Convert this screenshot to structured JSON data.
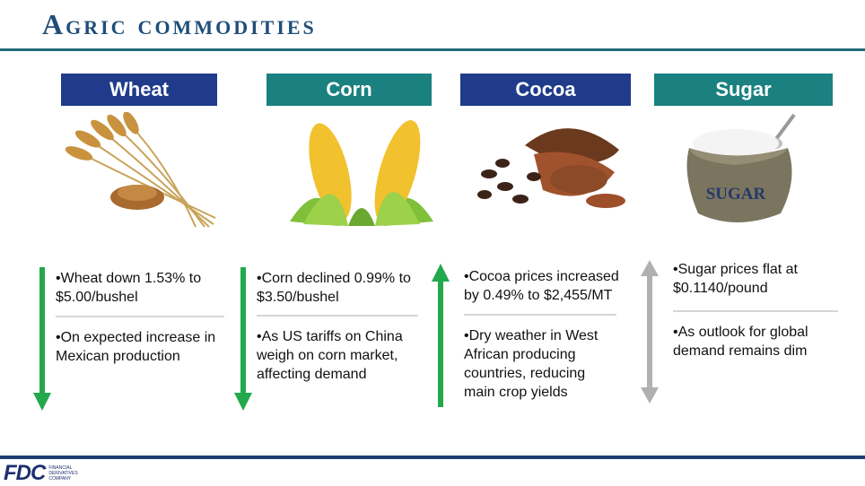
{
  "title": "Agric commodities",
  "colors": {
    "title": "#1f4e79",
    "navy_header": "#1f3b8a",
    "teal_header": "#1a8080",
    "down_arrow": "#23a94c",
    "up_arrow": "#23a94c",
    "flat_arrow": "#b0b0b0"
  },
  "commodities": [
    {
      "name": "Wheat",
      "icon": "wheat-icon",
      "trend": "down",
      "bullet_1_line_1": "•Wheat down 1.53% to",
      "bullet_1_line_2": "$5.00/bushel",
      "bullet_2_line_1": "•On expected increase in",
      "bullet_2_line_2": "Mexican production"
    },
    {
      "name": "Corn",
      "icon": "corn-icon",
      "trend": "down",
      "bullet_1_line_1": "•Corn declined 0.99%  to",
      "bullet_1_line_2": "$3.50/bushel",
      "bullet_2_line_1": "•As US tariffs on China",
      "bullet_2_line_2": "weigh on corn market,",
      "bullet_2_line_3": "affecting demand"
    },
    {
      "name": "Cocoa",
      "icon": "cocoa-icon",
      "trend": "up",
      "bullet_1_line_1": "•Cocoa prices increased",
      "bullet_1_line_2": "by 0.49% to $2,455/MT",
      "bullet_2_line_1": "•Dry weather in West",
      "bullet_2_line_2": "African producing",
      "bullet_2_line_3": "countries, reducing",
      "bullet_2_line_4": "main crop yields"
    },
    {
      "name": "Sugar",
      "icon": "sugar-sack-icon",
      "sack_label": "SUGAR",
      "trend": "flat",
      "bullet_1_line_1": "•Sugar prices flat at",
      "bullet_1_line_2": "$0.1140/pound",
      "bullet_2_line_1": "•As outlook for global",
      "bullet_2_line_2": "demand remains dim"
    }
  ],
  "logo": {
    "mark": "FDC",
    "sub_line_1": "FINANCIAL",
    "sub_line_2": "DERIVATIVES",
    "sub_line_3": "COMPANY"
  }
}
